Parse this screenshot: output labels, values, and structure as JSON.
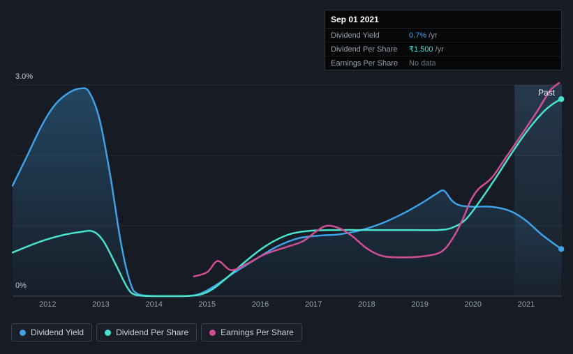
{
  "tooltip": {
    "date": "Sep 01 2021",
    "rows": [
      {
        "label": "Dividend Yield",
        "value": "0.7%",
        "suffix": " /yr",
        "value_color": "#3fa2e6"
      },
      {
        "label": "Dividend Per Share",
        "value": "₹1.500",
        "suffix": " /yr",
        "value_color": "#49e2cf"
      },
      {
        "label": "Earnings Per Share",
        "value": "No data",
        "suffix": "",
        "value_color": "#6e7681"
      }
    ]
  },
  "chart_data": {
    "type": "line",
    "x_tick_labels": [
      "2012",
      "2013",
      "2014",
      "2015",
      "2016",
      "2017",
      "2018",
      "2019",
      "2020",
      "2021"
    ],
    "y_tick_labels": {
      "top": "3.0%",
      "bottom": "0%"
    },
    "annotations": {
      "past": "Past"
    },
    "xlim": [
      2011.34,
      2021.67
    ],
    "ylim": [
      0,
      3
    ],
    "y_gridlines": [
      0,
      1,
      2,
      3
    ],
    "grid": "horizontal-only",
    "legend_position": "bottom-left",
    "highlight_band": {
      "from": 2020.78,
      "to": 2021.67,
      "color": "#5b9fd8"
    },
    "background": "#161b24",
    "series": [
      {
        "name": "Dividend Yield",
        "unit": "%",
        "color": "#3fa2e6",
        "area": true,
        "end_dot": true,
        "points": [
          [
            2011.34,
            1.57
          ],
          [
            2011.6,
            1.97
          ],
          [
            2011.9,
            2.44
          ],
          [
            2012.15,
            2.73
          ],
          [
            2012.4,
            2.89
          ],
          [
            2012.62,
            2.95
          ],
          [
            2012.78,
            2.9
          ],
          [
            2012.98,
            2.5
          ],
          [
            2013.18,
            1.7
          ],
          [
            2013.38,
            0.75
          ],
          [
            2013.55,
            0.2
          ],
          [
            2013.7,
            0.03
          ],
          [
            2014.1,
            0
          ],
          [
            2014.55,
            0
          ],
          [
            2014.85,
            0.03
          ],
          [
            2015.15,
            0.15
          ],
          [
            2015.5,
            0.33
          ],
          [
            2015.9,
            0.52
          ],
          [
            2016.3,
            0.7
          ],
          [
            2016.7,
            0.82
          ],
          [
            2017.1,
            0.86
          ],
          [
            2017.5,
            0.88
          ],
          [
            2017.9,
            0.94
          ],
          [
            2018.3,
            1.04
          ],
          [
            2018.7,
            1.18
          ],
          [
            2019.05,
            1.33
          ],
          [
            2019.3,
            1.45
          ],
          [
            2019.45,
            1.5
          ],
          [
            2019.6,
            1.36
          ],
          [
            2019.75,
            1.29
          ],
          [
            2020.0,
            1.27
          ],
          [
            2020.35,
            1.27
          ],
          [
            2020.7,
            1.21
          ],
          [
            2021.0,
            1.07
          ],
          [
            2021.3,
            0.87
          ],
          [
            2021.66,
            0.67
          ]
        ]
      },
      {
        "name": "Dividend Per Share",
        "unit": "₹",
        "color": "#49e2cf",
        "area": false,
        "end_dot": true,
        "points": [
          [
            2011.34,
            0.62
          ],
          [
            2011.7,
            0.73
          ],
          [
            2012.0,
            0.81
          ],
          [
            2012.3,
            0.87
          ],
          [
            2012.6,
            0.91
          ],
          [
            2012.85,
            0.92
          ],
          [
            2013.05,
            0.78
          ],
          [
            2013.28,
            0.45
          ],
          [
            2013.5,
            0.12
          ],
          [
            2013.65,
            0.02
          ],
          [
            2014.0,
            0
          ],
          [
            2014.5,
            0
          ],
          [
            2014.85,
            0.02
          ],
          [
            2015.1,
            0.1
          ],
          [
            2015.4,
            0.28
          ],
          [
            2015.7,
            0.48
          ],
          [
            2016.0,
            0.66
          ],
          [
            2016.3,
            0.8
          ],
          [
            2016.6,
            0.89
          ],
          [
            2016.95,
            0.93
          ],
          [
            2017.4,
            0.94
          ],
          [
            2017.9,
            0.94
          ],
          [
            2018.4,
            0.94
          ],
          [
            2018.9,
            0.94
          ],
          [
            2019.35,
            0.94
          ],
          [
            2019.6,
            0.97
          ],
          [
            2019.85,
            1.08
          ],
          [
            2020.1,
            1.32
          ],
          [
            2020.4,
            1.65
          ],
          [
            2020.7,
            2.0
          ],
          [
            2021.0,
            2.33
          ],
          [
            2021.3,
            2.6
          ],
          [
            2021.5,
            2.73
          ],
          [
            2021.66,
            2.8
          ]
        ]
      },
      {
        "name": "Earnings Per Share",
        "unit": "₹",
        "color": "#d24e95",
        "area": false,
        "end_dot": false,
        "points": [
          [
            2014.75,
            0.28
          ],
          [
            2015.0,
            0.34
          ],
          [
            2015.2,
            0.5
          ],
          [
            2015.45,
            0.37
          ],
          [
            2015.75,
            0.46
          ],
          [
            2016.1,
            0.6
          ],
          [
            2016.5,
            0.7
          ],
          [
            2016.8,
            0.78
          ],
          [
            2017.05,
            0.92
          ],
          [
            2017.25,
            1.0
          ],
          [
            2017.5,
            0.96
          ],
          [
            2017.75,
            0.84
          ],
          [
            2018.0,
            0.68
          ],
          [
            2018.3,
            0.57
          ],
          [
            2018.7,
            0.55
          ],
          [
            2019.1,
            0.57
          ],
          [
            2019.4,
            0.63
          ],
          [
            2019.6,
            0.8
          ],
          [
            2019.8,
            1.08
          ],
          [
            2019.95,
            1.35
          ],
          [
            2020.1,
            1.52
          ],
          [
            2020.35,
            1.68
          ],
          [
            2020.6,
            1.95
          ],
          [
            2020.9,
            2.28
          ],
          [
            2021.2,
            2.62
          ],
          [
            2021.45,
            2.92
          ],
          [
            2021.62,
            3.03
          ]
        ]
      }
    ]
  }
}
